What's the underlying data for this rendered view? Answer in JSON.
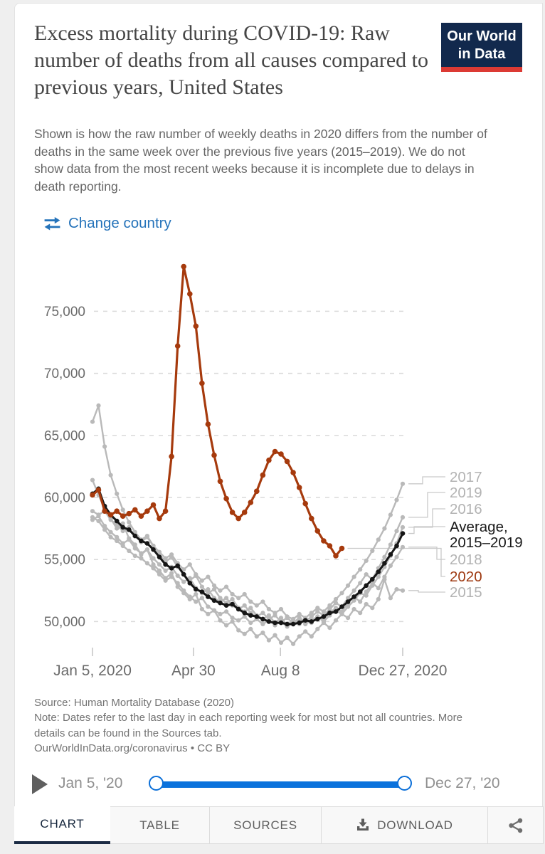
{
  "header": {
    "title": "Excess mortality during COVID-19: Raw number of deaths from all causes compared to previous years, United States",
    "subtitle": "Shown is how the raw number of weekly deaths in 2020 differs from the number of deaths in the same week over the previous five years (2015–2019). We do not show data from the most recent weeks because it is incomplete due to delays in death reporting."
  },
  "logo": {
    "line1": "Our World",
    "line2": "in Data"
  },
  "toolbar": {
    "change_country": "Change country"
  },
  "chart_data": {
    "type": "line",
    "x_unit": "week of 2020 (aligned by week for 2015–2019)",
    "x_axis": {
      "ticks": [
        {
          "w": 0,
          "label": "Jan 5, 2020"
        },
        {
          "w": 16.6,
          "label": "Apr 30"
        },
        {
          "w": 30.9,
          "label": "Aug 8"
        },
        {
          "w": 51,
          "label": "Dec 27, 2020"
        }
      ]
    },
    "y_axis": {
      "ticks": [
        {
          "v": 50000,
          "label": "50,000"
        },
        {
          "v": 55000,
          "label": "55,000"
        },
        {
          "v": 60000,
          "label": "60,000"
        },
        {
          "v": 65000,
          "label": "65,000"
        },
        {
          "v": 70000,
          "label": "70,000"
        },
        {
          "v": 75000,
          "label": "75,000"
        }
      ],
      "ylim": [
        47500,
        79200
      ]
    },
    "series": [
      {
        "key": "2015",
        "name": "2015",
        "color": "#b9b9b9",
        "values": [
          61400,
          60200,
          59100,
          58300,
          57500,
          57900,
          56700,
          56200,
          55400,
          55800,
          54600,
          54100,
          53500,
          53900,
          52800,
          52300,
          51800,
          52200,
          51000,
          50600,
          50900,
          50100,
          49700,
          50000,
          49300,
          49000,
          49400,
          48800,
          49100,
          48500,
          48900,
          48300,
          48700,
          48200,
          48800,
          49200,
          48800,
          49400,
          49900,
          49500,
          50100,
          50600,
          50300,
          51000,
          50700,
          51400,
          51100,
          51800,
          53400,
          51900,
          52600,
          52500
        ]
      },
      {
        "key": "2016",
        "name": "2016",
        "color": "#b9b9b9",
        "values": [
          58400,
          58100,
          57400,
          56800,
          56500,
          56100,
          55700,
          55300,
          55100,
          54700,
          54300,
          53800,
          53300,
          53600,
          53100,
          52500,
          52000,
          51600,
          51900,
          51200,
          50900,
          50600,
          50800,
          50300,
          50100,
          50400,
          49900,
          50200,
          49800,
          50100,
          49700,
          50000,
          49600,
          49900,
          50200,
          49800,
          50100,
          50400,
          50000,
          50500,
          50900,
          50600,
          51200,
          51700,
          52300,
          52100,
          52900,
          53600,
          54400,
          55300,
          56300,
          57600
        ]
      },
      {
        "key": "2017",
        "name": "2017",
        "color": "#b9b9b9",
        "values": [
          58900,
          58600,
          58900,
          58200,
          57800,
          57300,
          57600,
          56900,
          56400,
          56800,
          56100,
          55600,
          55100,
          55400,
          54700,
          54200,
          54600,
          53800,
          53300,
          53600,
          52900,
          52500,
          52800,
          52200,
          51900,
          52200,
          51600,
          51300,
          51600,
          51000,
          50700,
          51000,
          50400,
          50200,
          50600,
          50300,
          50700,
          51100,
          50800,
          51300,
          51800,
          52300,
          52900,
          53600,
          54200,
          54900,
          55700,
          56600,
          57500,
          58600,
          59800,
          61100
        ]
      },
      {
        "key": "2018",
        "name": "2018",
        "color": "#b9b9b9",
        "values": [
          66100,
          67400,
          64100,
          61800,
          60300,
          59000,
          58000,
          57200,
          56600,
          56900,
          56100,
          55400,
          54800,
          55200,
          54400,
          53800,
          53300,
          53700,
          52800,
          52300,
          52600,
          51900,
          51500,
          51800,
          51100,
          50800,
          51100,
          50500,
          50200,
          50500,
          49900,
          50300,
          49700,
          50100,
          49800,
          50200,
          49900,
          50400,
          50100,
          50700,
          51100,
          50800,
          51500,
          52000,
          51600,
          52400,
          53100,
          52700,
          53600,
          54500,
          55200,
          56000
        ]
      },
      {
        "key": "2019",
        "name": "2019",
        "color": "#b9b9b9",
        "values": [
          58200,
          58500,
          57700,
          57200,
          56800,
          56300,
          56600,
          55900,
          55500,
          55800,
          55100,
          54600,
          54100,
          54400,
          53700,
          53200,
          53500,
          52700,
          52300,
          52600,
          51900,
          51600,
          51900,
          51300,
          51000,
          51300,
          50700,
          50400,
          50700,
          50200,
          50500,
          50000,
          50300,
          49900,
          50300,
          50000,
          50400,
          50800,
          50500,
          51000,
          51500,
          51200,
          51900,
          52500,
          53100,
          53800,
          53400,
          54300,
          55200,
          56200,
          57300,
          58400
        ]
      },
      {
        "key": "avg",
        "name": "Average, 2015–2019",
        "color": "#161616",
        "values": [
          60300,
          60700,
          59300,
          58600,
          58100,
          57600,
          57400,
          56900,
          56500,
          56300,
          55800,
          55200,
          54600,
          54300,
          54500,
          53800,
          53100,
          52600,
          52400,
          52000,
          51700,
          51500,
          51300,
          51400,
          51000,
          50700,
          50500,
          50400,
          50200,
          50000,
          49900,
          49900,
          49800,
          49800,
          49900,
          50100,
          50000,
          50200,
          50400,
          50700,
          50800,
          51200,
          51600,
          52000,
          52400,
          52900,
          53400,
          54000,
          54700,
          55400,
          56100,
          57100
        ]
      },
      {
        "key": "2020",
        "name": "2020",
        "color": "#a63a0d",
        "values": [
          60200,
          60600,
          58900,
          58600,
          58900,
          58500,
          58700,
          59000,
          58500,
          58900,
          59400,
          58300,
          58900,
          63300,
          72200,
          78600,
          76400,
          73800,
          69200,
          65900,
          63400,
          61300,
          59900,
          58800,
          58300,
          58800,
          59600,
          60500,
          61800,
          63000,
          63700,
          63500,
          62900,
          62000,
          60800,
          59500,
          58300,
          57300,
          56500,
          56100,
          55300,
          55900
        ]
      }
    ],
    "legend": [
      {
        "label": "2017",
        "series": "2017",
        "color": "#b3b3b3"
      },
      {
        "label": "2019",
        "series": "2019",
        "color": "#b3b3b3"
      },
      {
        "label": "2016",
        "series": "2016",
        "color": "#b3b3b3"
      },
      {
        "label": "Average,",
        "label2": "2015–2019",
        "series": "avg",
        "color": "#1a1a1a"
      },
      {
        "label": "2018",
        "series": "2018",
        "color": "#b3b3b3"
      },
      {
        "label": "2020",
        "series": "2020",
        "color": "#9e3a12"
      },
      {
        "label": "2015",
        "series": "2015",
        "color": "#b3b3b3"
      }
    ],
    "legend_position": "right",
    "grid": true
  },
  "source": {
    "source_line": "Source: Human Mortality Database (2020)",
    "note_line": "Note: Dates refer to the last day in each reporting week for most but not all countries. More details can be found in the Sources tab.",
    "link_line": "OurWorldInData.org/coronavirus • CC BY"
  },
  "timeline": {
    "start_label": "Jan 5, '20",
    "end_label": "Dec 27, '20"
  },
  "tabs": [
    {
      "label": "CHART",
      "active": true
    },
    {
      "label": "TABLE",
      "active": false
    },
    {
      "label": "SOURCES",
      "active": false
    },
    {
      "label": "DOWNLOAD",
      "active": false
    }
  ],
  "colors": {
    "accent_blue": "#2573ba",
    "slider_blue": "#0b72dc",
    "line_gray": "#b9b9b9",
    "line_black": "#161616",
    "line_red": "#a63a0d",
    "logo_navy": "#12294d",
    "logo_red": "#dc3a34",
    "active_tab_navy": "#1b2b44"
  }
}
